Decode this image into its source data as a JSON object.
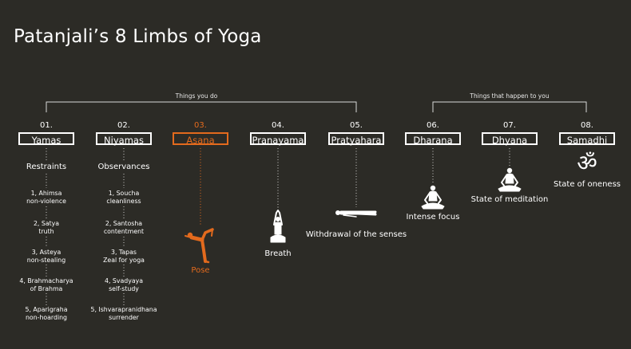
{
  "title": "Patanjali’s 8 Limbs of Yoga",
  "groups": [
    {
      "label": "Things you do"
    },
    {
      "label": "Things that happen to you"
    }
  ],
  "limbs": [
    {
      "number": "01.",
      "name": "Yamas",
      "description": "Restraints",
      "items": [
        {
          "line1": "1, Ahimsa",
          "line2": "non-violence"
        },
        {
          "line1": "2, Satya",
          "line2": "truth"
        },
        {
          "line1": "3, Asteya",
          "line2": "non-stealing"
        },
        {
          "line1": "4, Brahmacharya",
          "line2": "of Brahma"
        },
        {
          "line1": "5, Aparigraha",
          "line2": "non-hoarding"
        }
      ]
    },
    {
      "number": "02.",
      "name": "Niyamas",
      "description": "Observances",
      "items": [
        {
          "line1": "1, Soucha",
          "line2": "cleanliness"
        },
        {
          "line1": "2, Santosha",
          "line2": "contentment"
        },
        {
          "line1": "3, Tapas",
          "line2": "Zeal for yoga"
        },
        {
          "line1": "4, Svadyaya",
          "line2": "self-study"
        },
        {
          "line1": "5, Ishvarapranidhana",
          "line2": "surrender"
        }
      ]
    },
    {
      "number": "03.",
      "name": "Asana",
      "description": "Pose",
      "icon": "dancer-pose-icon"
    },
    {
      "number": "04.",
      "name": "Pranayama",
      "description": "Breath",
      "icon": "breathing-figure-icon"
    },
    {
      "number": "05.",
      "name": "Pratyahara",
      "description": "Withdrawal of the senses",
      "icon": "lying-figure-icon"
    },
    {
      "number": "06.",
      "name": "Dharana",
      "description": "Intense focus",
      "icon": "meditating-figure-icon"
    },
    {
      "number": "07.",
      "name": "Dhyana",
      "description": "State of meditation",
      "icon": "meditating-figure-icon"
    },
    {
      "number": "08.",
      "name": "Samadhi",
      "description": "State of oneness",
      "icon": "om-symbol-icon"
    }
  ],
  "colors": {
    "background": "#2c2b26",
    "text": "#ffffff",
    "highlight": "#e36a1d"
  }
}
